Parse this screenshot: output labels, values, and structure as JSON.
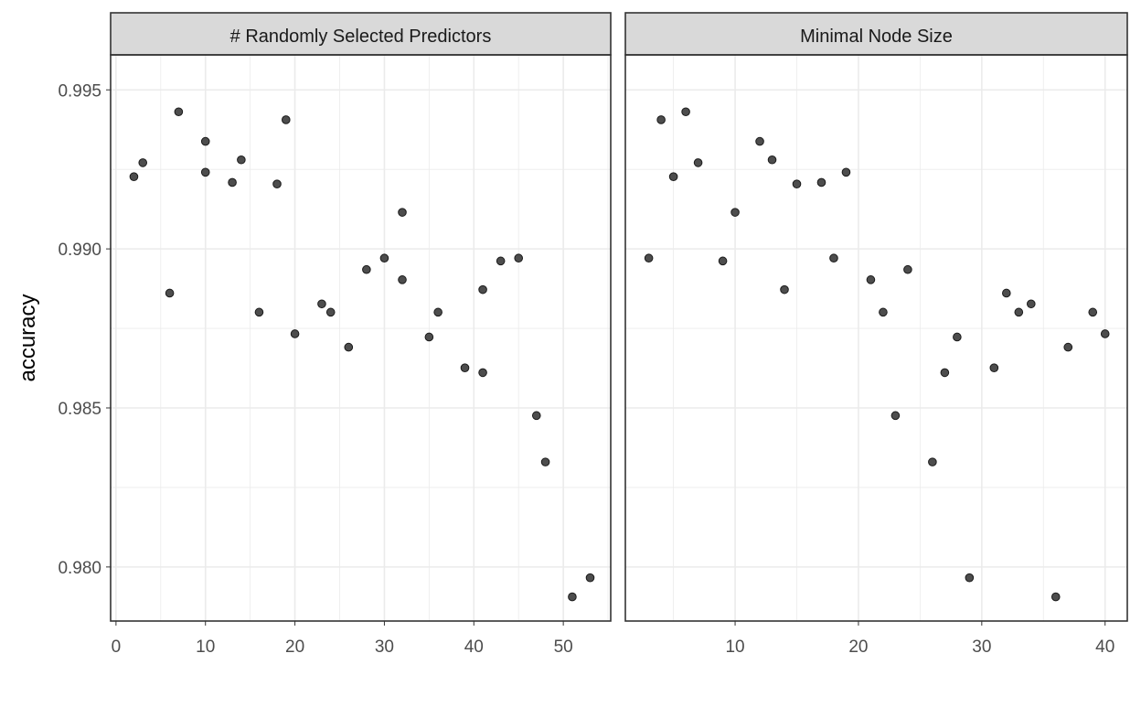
{
  "chart_data": {
    "type": "scatter",
    "ylabel": "accuracy",
    "y_ticks": [
      "0.980",
      "0.985",
      "0.990",
      "0.995"
    ],
    "y_tick_values": [
      0.98,
      0.985,
      0.99,
      0.995
    ],
    "ylim": [
      0.9783,
      0.9961
    ],
    "grid": true,
    "colors": {
      "point_fill": "#4d4d4d",
      "point_stroke": "#1a1a1a",
      "strip_fill": "#d9d9d9",
      "grid": "#ebebeb"
    },
    "panels": [
      {
        "title": "# Randomly Selected Predictors",
        "xlim": [
          -0.6,
          55.3
        ],
        "x_ticks": [
          "0",
          "10",
          "20",
          "30",
          "40",
          "50"
        ],
        "x_tick_values": [
          0,
          10,
          20,
          30,
          40,
          50
        ],
        "points": [
          [
            2,
            0.99227
          ],
          [
            3,
            0.99271
          ],
          [
            6,
            0.98861
          ],
          [
            7,
            0.99431
          ],
          [
            10,
            0.99338
          ],
          [
            10,
            0.99241
          ],
          [
            13,
            0.99209
          ],
          [
            14,
            0.9928
          ],
          [
            16,
            0.98801
          ],
          [
            18,
            0.99204
          ],
          [
            19,
            0.99406
          ],
          [
            20,
            0.98733
          ],
          [
            23,
            0.98827
          ],
          [
            24,
            0.98801
          ],
          [
            26,
            0.98691
          ],
          [
            28,
            0.98935
          ],
          [
            30,
            0.98971
          ],
          [
            32,
            0.99115
          ],
          [
            32,
            0.98903
          ],
          [
            35,
            0.98723
          ],
          [
            36,
            0.98801
          ],
          [
            39,
            0.98626
          ],
          [
            41,
            0.98872
          ],
          [
            41,
            0.98611
          ],
          [
            43,
            0.98962
          ],
          [
            45,
            0.98971
          ],
          [
            47,
            0.98476
          ],
          [
            48,
            0.9833
          ],
          [
            51,
            0.97906
          ],
          [
            53,
            0.97966
          ]
        ]
      },
      {
        "title": "Minimal Node Size",
        "xlim": [
          1.1,
          41.8
        ],
        "x_ticks": [
          "10",
          "20",
          "30",
          "40"
        ],
        "x_tick_values": [
          10,
          20,
          30,
          40
        ],
        "points": [
          [
            3,
            0.98971
          ],
          [
            4,
            0.99406
          ],
          [
            5,
            0.99227
          ],
          [
            6,
            0.99431
          ],
          [
            7,
            0.99271
          ],
          [
            9,
            0.98962
          ],
          [
            10,
            0.99115
          ],
          [
            12,
            0.99338
          ],
          [
            13,
            0.9928
          ],
          [
            14,
            0.98872
          ],
          [
            15,
            0.99204
          ],
          [
            17,
            0.99209
          ],
          [
            18,
            0.98971
          ],
          [
            19,
            0.99241
          ],
          [
            21,
            0.98903
          ],
          [
            22,
            0.98801
          ],
          [
            23,
            0.98476
          ],
          [
            24,
            0.98935
          ],
          [
            26,
            0.9833
          ],
          [
            27,
            0.98611
          ],
          [
            28,
            0.98723
          ],
          [
            29,
            0.97966
          ],
          [
            31,
            0.98626
          ],
          [
            32,
            0.98861
          ],
          [
            33,
            0.98801
          ],
          [
            34,
            0.98827
          ],
          [
            36,
            0.97906
          ],
          [
            37,
            0.98691
          ],
          [
            39,
            0.98801
          ],
          [
            40,
            0.98733
          ]
        ]
      }
    ]
  }
}
